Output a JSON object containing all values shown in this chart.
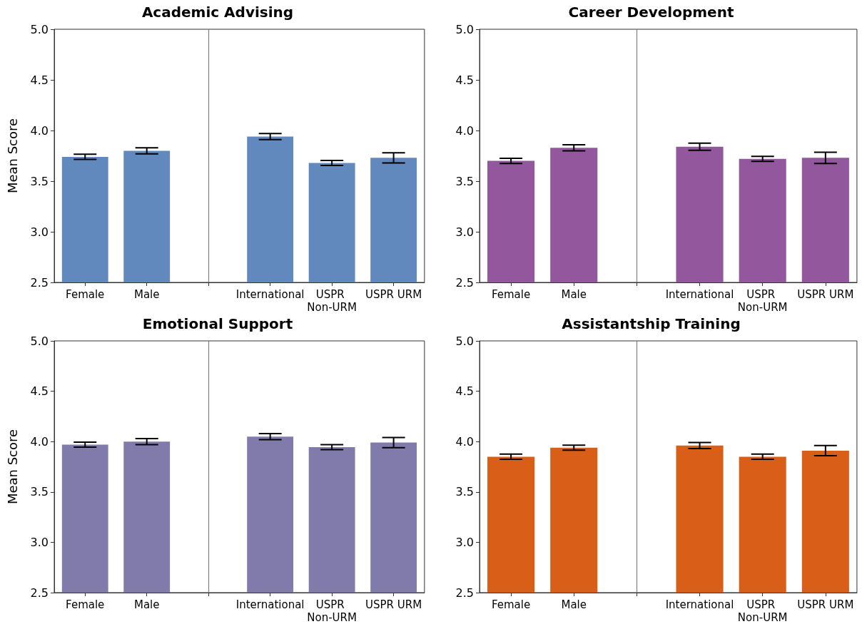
{
  "chart_data": [
    {
      "type": "bar",
      "title": "Academic Advising",
      "ylabel": "Mean Score",
      "categories": [
        "Female",
        "Male",
        null,
        "International",
        "USPR Non-URM",
        "USPR URM"
      ],
      "values": [
        3.74,
        3.8,
        null,
        3.94,
        3.68,
        3.73
      ],
      "errors": [
        0.025,
        0.03,
        null,
        0.03,
        0.025,
        0.05
      ],
      "color": "#6189bd",
      "ylim": [
        2.5,
        5
      ],
      "yticks": [
        2.5,
        {
          "value": 3,
          "label": "3.0"
        },
        3.5,
        {
          "value": 4,
          "label": "4.0"
        },
        4.5,
        {
          "value": 5,
          "label": "5.0"
        }
      ]
    },
    {
      "type": "bar",
      "title": "Career Development",
      "categories": [
        "Female",
        "Male",
        null,
        "International",
        "USPR Non-URM",
        "USPR URM"
      ],
      "values": [
        3.7,
        3.83,
        null,
        3.84,
        3.72,
        3.73
      ],
      "errors": [
        0.025,
        0.03,
        null,
        0.035,
        0.025,
        0.055
      ],
      "color": "#93579e",
      "ylim": [
        2.5,
        5
      ],
      "yticks": [
        2.5,
        {
          "value": 3,
          "label": "3.0"
        },
        3.5,
        {
          "value": 4,
          "label": "4.0"
        },
        4.5,
        {
          "value": 5,
          "label": "5.0"
        }
      ]
    },
    {
      "type": "bar",
      "title": "Emotional Support",
      "ylabel": "Mean Score",
      "categories": [
        "Female",
        "Male",
        null,
        "International",
        "USPR Non-URM",
        "USPR URM"
      ],
      "values": [
        3.97,
        4.0,
        null,
        4.05,
        3.945,
        3.99
      ],
      "errors": [
        0.025,
        0.03,
        null,
        0.03,
        0.025,
        0.05
      ],
      "color": "#807bab",
      "ylim": [
        2.5,
        5
      ],
      "yticks": [
        2.5,
        {
          "value": 3,
          "label": "3.0"
        },
        3.5,
        {
          "value": 4,
          "label": "4.0"
        },
        4.5,
        {
          "value": 5,
          "label": "5.0"
        }
      ]
    },
    {
      "type": "bar",
      "title": "Assistantship Training",
      "categories": [
        "Female",
        "Male",
        null,
        "International",
        "USPR Non-URM",
        "USPR URM"
      ],
      "values": [
        3.85,
        3.94,
        null,
        3.96,
        3.85,
        3.91
      ],
      "errors": [
        0.025,
        0.025,
        null,
        0.03,
        0.025,
        0.05
      ],
      "color": "#d95f18",
      "ylim": [
        2.5,
        5
      ],
      "yticks": [
        2.5,
        {
          "value": 3,
          "label": "3.0"
        },
        3.5,
        {
          "value": 4,
          "label": "4.0"
        },
        4.5,
        {
          "value": 5,
          "label": "5.0"
        }
      ]
    }
  ]
}
